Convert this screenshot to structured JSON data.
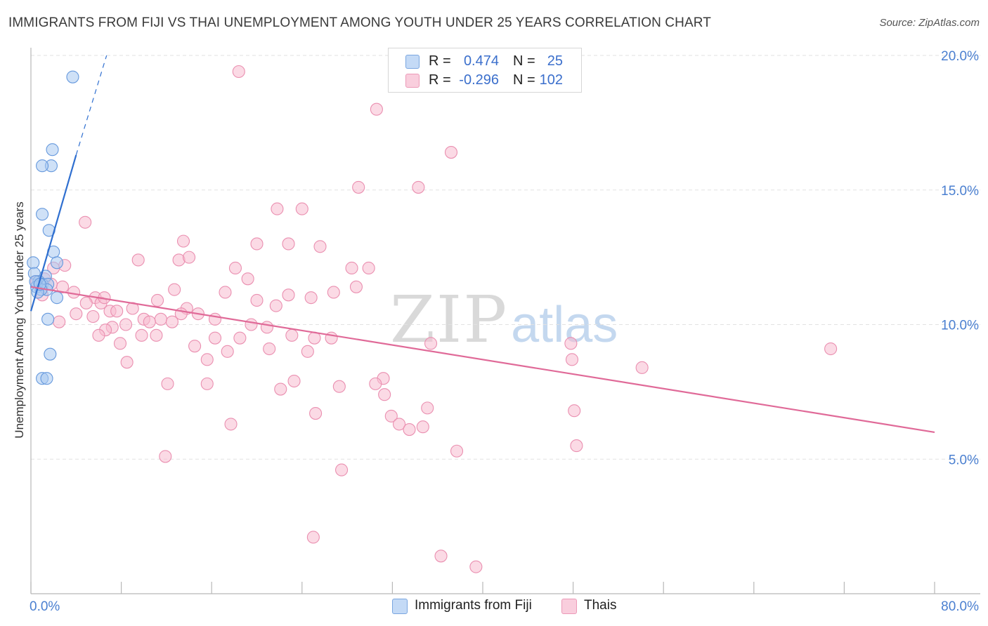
{
  "header": {
    "title": "IMMIGRANTS FROM FIJI VS THAI UNEMPLOYMENT AMONG YOUTH UNDER 25 YEARS CORRELATION CHART",
    "source": "Source: ZipAtlas.com"
  },
  "watermark": {
    "zip": "ZIP",
    "atlas": "atlas"
  },
  "legend": {
    "fiji": {
      "r_label": "R =",
      "r_value": "0.474",
      "n_label": "N =",
      "n_value": "25"
    },
    "thai": {
      "r_label": "R =",
      "r_value": "-0.296",
      "n_label": "N =",
      "n_value": "102"
    }
  },
  "bottom_legend": {
    "fiji": "Immigrants from Fiji",
    "thai": "Thais"
  },
  "colors": {
    "fiji_fill": "#a8c8f0",
    "fiji_stroke": "#6699dd",
    "fiji_line": "#2f6fd0",
    "thai_fill": "#f7bcd0",
    "thai_stroke": "#ea8fb0",
    "thai_line": "#e06a98",
    "grid": "#e2e2e2",
    "tick_text": "#4a7fd0"
  },
  "chart_data": {
    "type": "scatter",
    "title": "IMMIGRANTS FROM FIJI VS THAI UNEMPLOYMENT AMONG YOUTH UNDER 25 YEARS CORRELATION CHART",
    "xlabel": "",
    "ylabel": "Unemployment Among Youth under 25 years",
    "xlim": [
      0,
      80
    ],
    "ylim": [
      0,
      20
    ],
    "x_tick_labels": [
      "0.0%",
      "80.0%"
    ],
    "y_ticks": [
      5,
      10,
      15,
      20
    ],
    "y_tick_labels": [
      "5.0%",
      "10.0%",
      "15.0%",
      "20.0%"
    ],
    "grid": true,
    "series": [
      {
        "name": "Immigrants from Fiji",
        "r": 0.474,
        "n": 25,
        "trend": {
          "x_start": 0.0,
          "y_start": 10.5,
          "x_end": 4.0,
          "y_end": 16.3,
          "dashed_to_x": 6.7,
          "dashed_to_y": 20.0
        },
        "points": [
          [
            3.7,
            19.2
          ],
          [
            1.9,
            16.5
          ],
          [
            1.8,
            15.9
          ],
          [
            1.0,
            15.9
          ],
          [
            1.0,
            14.1
          ],
          [
            1.6,
            13.5
          ],
          [
            2.0,
            12.7
          ],
          [
            2.3,
            12.3
          ],
          [
            0.2,
            12.3
          ],
          [
            0.3,
            11.9
          ],
          [
            1.3,
            11.8
          ],
          [
            0.7,
            11.6
          ],
          [
            1.0,
            11.5
          ],
          [
            1.5,
            11.5
          ],
          [
            0.5,
            11.4
          ],
          [
            1.4,
            11.3
          ],
          [
            0.9,
            11.3
          ],
          [
            0.6,
            11.2
          ],
          [
            2.3,
            11.0
          ],
          [
            1.5,
            10.2
          ],
          [
            1.7,
            8.9
          ],
          [
            1.0,
            8.0
          ],
          [
            1.4,
            8.0
          ],
          [
            0.4,
            11.6
          ],
          [
            0.8,
            11.5
          ]
        ]
      },
      {
        "name": "Thais",
        "r": -0.296,
        "n": 102,
        "trend": {
          "x_start": 0.0,
          "y_start": 11.4,
          "x_end": 80.0,
          "y_end": 6.0
        },
        "points": [
          [
            18.4,
            19.4
          ],
          [
            30.6,
            18.0
          ],
          [
            37.2,
            16.4
          ],
          [
            29.0,
            15.1
          ],
          [
            34.3,
            15.1
          ],
          [
            21.8,
            14.3
          ],
          [
            24.0,
            14.3
          ],
          [
            4.8,
            13.8
          ],
          [
            13.5,
            13.1
          ],
          [
            20.0,
            13.0
          ],
          [
            22.8,
            13.0
          ],
          [
            25.6,
            12.9
          ],
          [
            9.5,
            12.4
          ],
          [
            13.1,
            12.4
          ],
          [
            14.0,
            12.5
          ],
          [
            2.0,
            12.1
          ],
          [
            18.1,
            12.1
          ],
          [
            28.4,
            12.1
          ],
          [
            29.9,
            12.1
          ],
          [
            19.2,
            11.7
          ],
          [
            1.2,
            11.7
          ],
          [
            2.8,
            11.4
          ],
          [
            28.8,
            11.4
          ],
          [
            12.7,
            11.3
          ],
          [
            26.8,
            11.2
          ],
          [
            22.8,
            11.1
          ],
          [
            3.8,
            11.2
          ],
          [
            5.7,
            11.0
          ],
          [
            11.2,
            10.9
          ],
          [
            20.0,
            10.9
          ],
          [
            1.0,
            11.1
          ],
          [
            6.2,
            10.8
          ],
          [
            4.9,
            10.8
          ],
          [
            13.8,
            10.6
          ],
          [
            7.0,
            10.5
          ],
          [
            21.7,
            10.7
          ],
          [
            4.0,
            10.4
          ],
          [
            5.5,
            10.3
          ],
          [
            13.3,
            10.4
          ],
          [
            14.8,
            10.4
          ],
          [
            7.6,
            10.5
          ],
          [
            10.0,
            10.2
          ],
          [
            11.5,
            10.2
          ],
          [
            16.3,
            10.2
          ],
          [
            7.2,
            9.9
          ],
          [
            10.5,
            10.1
          ],
          [
            12.5,
            10.1
          ],
          [
            8.4,
            10.0
          ],
          [
            2.5,
            10.1
          ],
          [
            6.6,
            9.8
          ],
          [
            19.5,
            10.0
          ],
          [
            20.9,
            9.9
          ],
          [
            9.8,
            9.6
          ],
          [
            6.0,
            9.6
          ],
          [
            11.1,
            9.6
          ],
          [
            16.3,
            9.5
          ],
          [
            18.5,
            9.5
          ],
          [
            23.1,
            9.6
          ],
          [
            25.1,
            9.5
          ],
          [
            26.6,
            9.5
          ],
          [
            35.4,
            9.3
          ],
          [
            7.9,
            9.3
          ],
          [
            14.5,
            9.2
          ],
          [
            21.1,
            9.1
          ],
          [
            17.4,
            9.0
          ],
          [
            24.5,
            9.0
          ],
          [
            15.6,
            8.7
          ],
          [
            8.5,
            8.6
          ],
          [
            47.8,
            9.3
          ],
          [
            70.8,
            9.1
          ],
          [
            47.9,
            8.7
          ],
          [
            54.1,
            8.4
          ],
          [
            31.2,
            8.0
          ],
          [
            23.3,
            7.9
          ],
          [
            30.5,
            7.8
          ],
          [
            12.1,
            7.8
          ],
          [
            15.6,
            7.8
          ],
          [
            27.3,
            7.7
          ],
          [
            22.1,
            7.6
          ],
          [
            31.3,
            7.4
          ],
          [
            35.1,
            6.9
          ],
          [
            48.1,
            6.8
          ],
          [
            25.2,
            6.7
          ],
          [
            31.9,
            6.6
          ],
          [
            17.7,
            6.3
          ],
          [
            32.6,
            6.3
          ],
          [
            33.5,
            6.1
          ],
          [
            34.7,
            6.2
          ],
          [
            11.9,
            5.1
          ],
          [
            37.7,
            5.3
          ],
          [
            48.3,
            5.5
          ],
          [
            27.5,
            4.6
          ],
          [
            25.0,
            2.1
          ],
          [
            36.3,
            1.4
          ],
          [
            39.4,
            1.0
          ],
          [
            0.5,
            11.6
          ],
          [
            3.0,
            12.2
          ],
          [
            1.8,
            11.5
          ],
          [
            6.5,
            11.0
          ],
          [
            17.2,
            11.2
          ],
          [
            9.0,
            10.6
          ],
          [
            24.8,
            11.0
          ]
        ]
      }
    ]
  }
}
